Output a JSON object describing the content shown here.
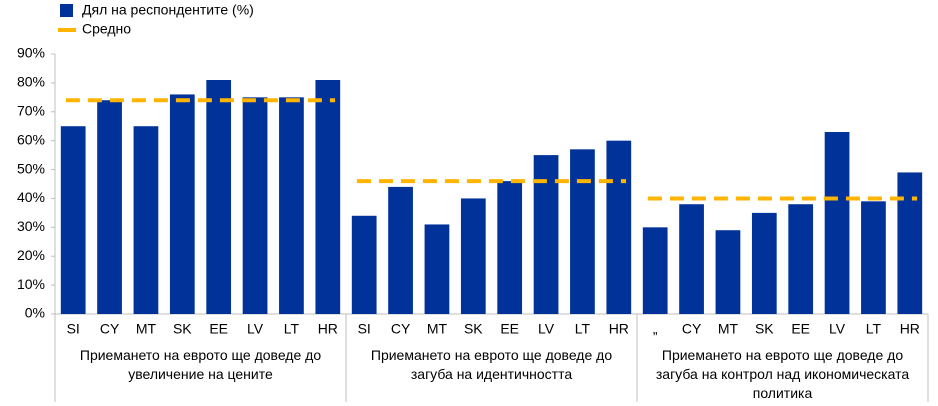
{
  "chart_data": {
    "type": "bar",
    "series": [
      {
        "name": "Дял на респондентите (%)",
        "color": "#003299"
      },
      {
        "name": "Средно",
        "color": "#ffb400"
      }
    ],
    "groups": [
      {
        "label": "Приемането на еврото ще доведе до увеличение на цените",
        "categories": [
          "SI",
          "CY",
          "MT",
          "SK",
          "EE",
          "LV",
          "LT",
          "HR"
        ],
        "values": [
          65,
          74,
          65,
          76,
          81,
          75,
          75,
          81
        ],
        "average": 74
      },
      {
        "label": "Приемането на еврото ще доведе до загуба на идентичността",
        "categories": [
          "SI",
          "CY",
          "MT",
          "SK",
          "EE",
          "LV",
          "LT",
          "HR"
        ],
        "values": [
          34,
          44,
          31,
          40,
          46,
          55,
          57,
          60
        ],
        "average": 46
      },
      {
        "label": "Приемането на еврото ще доведе до загуба на контрол над икономическата политика",
        "categories": [
          "„",
          "CY",
          "MT",
          "SK",
          "EE",
          "LV",
          "LT",
          "HR"
        ],
        "values": [
          30,
          38,
          29,
          35,
          38,
          63,
          39,
          49
        ],
        "average": 40
      }
    ],
    "ylim": [
      0,
      90
    ],
    "yticks": [
      {
        "value": 0,
        "label": "0%"
      },
      {
        "value": 10,
        "label": "10%"
      },
      {
        "value": 20,
        "label": "20%"
      },
      {
        "value": 30,
        "label": "30%"
      },
      {
        "value": 40,
        "label": "40%"
      },
      {
        "value": 50,
        "label": "50%"
      },
      {
        "value": 60,
        "label": "60%"
      },
      {
        "value": 70,
        "label": "70%"
      },
      {
        "value": 80,
        "label": "80%"
      },
      {
        "value": 90,
        "label": "90%"
      }
    ]
  }
}
